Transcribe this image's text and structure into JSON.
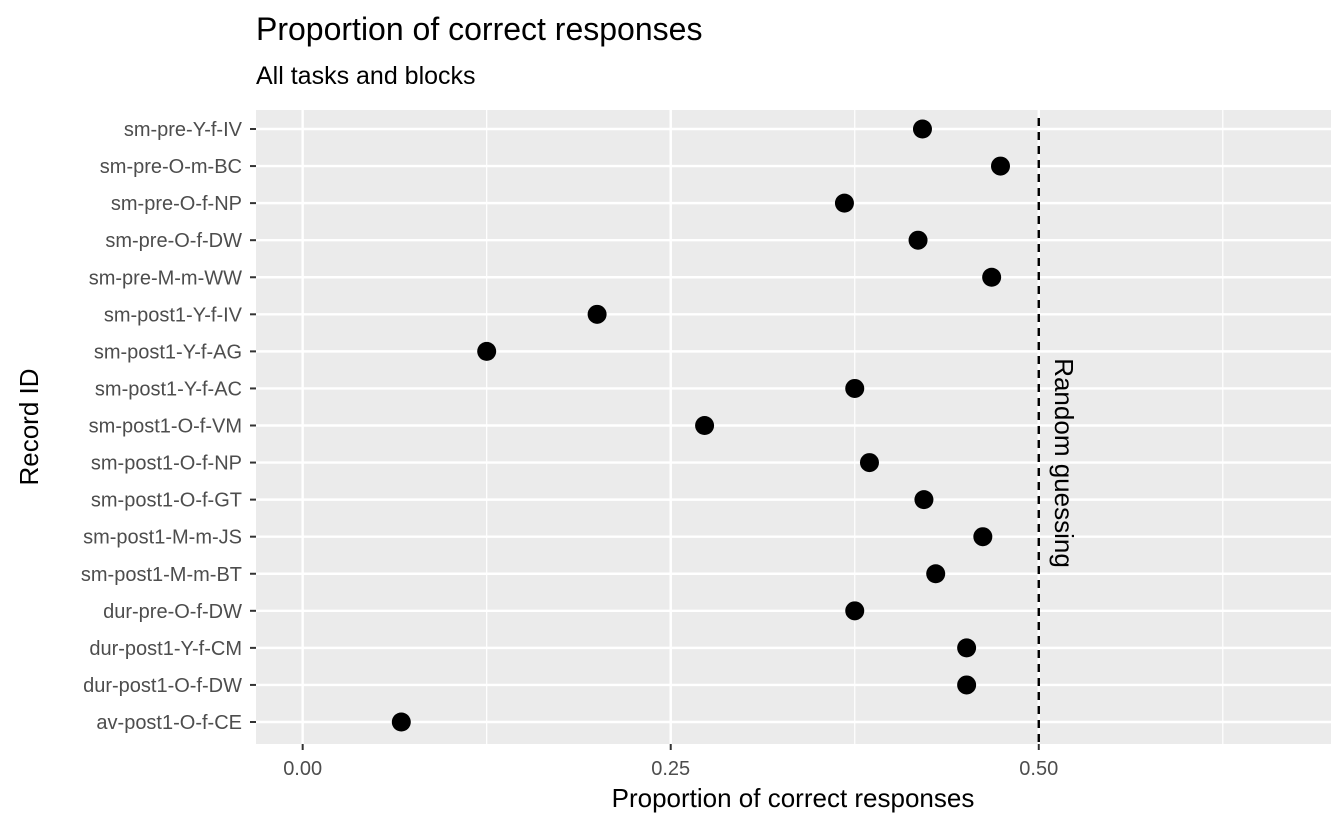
{
  "chart_data": {
    "type": "scatter",
    "title": "Proportion of correct responses",
    "subtitle": "All tasks and blocks",
    "xlabel": "Proportion of correct responses",
    "ylabel": "Record ID",
    "xlim": [
      -0.0317,
      0.6985
    ],
    "x_ticks": [
      0.0,
      0.25,
      0.5
    ],
    "x_tick_labels": [
      "0.00",
      "0.25",
      "0.50"
    ],
    "categories": [
      "sm-pre-Y-f-IV",
      "sm-pre-O-m-BC",
      "sm-pre-O-f-NP",
      "sm-pre-O-f-DW",
      "sm-pre-M-m-WW",
      "sm-post1-Y-f-IV",
      "sm-post1-Y-f-AG",
      "sm-post1-Y-f-AC",
      "sm-post1-O-f-VM",
      "sm-post1-O-f-NP",
      "sm-post1-O-f-GT",
      "sm-post1-M-m-JS",
      "sm-post1-M-m-BT",
      "dur-pre-O-f-DW",
      "dur-post1-Y-f-CM",
      "dur-post1-O-f-DW",
      "av-post1-O-f-CE"
    ],
    "values": [
      0.421,
      0.474,
      0.368,
      0.418,
      0.468,
      0.2,
      0.125,
      0.375,
      0.273,
      0.385,
      0.422,
      0.462,
      0.43,
      0.375,
      0.451,
      0.451,
      0.067
    ],
    "reference_line": {
      "x": 0.5,
      "style": "dashed",
      "label": "Random guessing"
    },
    "grid": true,
    "colors": {
      "panel": "#ebebeb",
      "grid": "#ffffff",
      "point": "#000000",
      "tick_text": "#4d4d4d"
    }
  }
}
